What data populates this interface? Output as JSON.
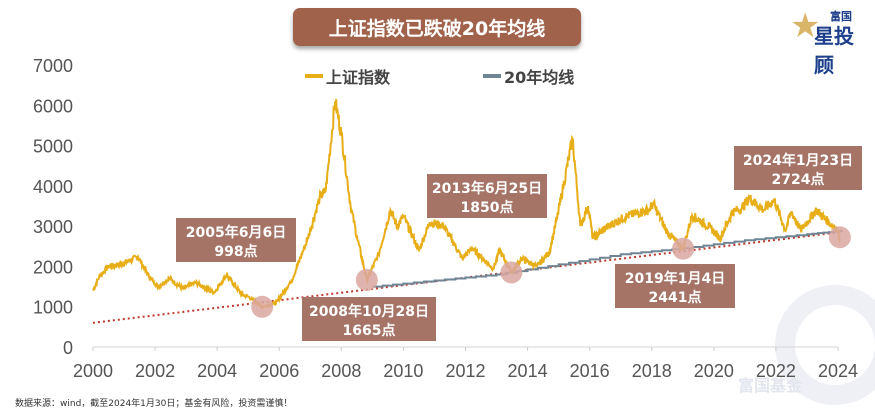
{
  "header": {
    "title": "上证指数已跌破20年均线",
    "logo_top": "富国",
    "logo_bottom": "星投顾"
  },
  "footnote": "数据来源：wind，截至2024年1月30日；基金有风险，投资需谨慎！",
  "watermark": "富国基金",
  "colors": {
    "index": "#e8ae17",
    "ma": "#6f8594",
    "trend": "#c0392b",
    "label_bg": "#a57466",
    "circle": "#d9a7a0"
  },
  "chart_data": {
    "type": "line",
    "title": "上证指数已跌破20年均线",
    "xlim": [
      2000,
      2024
    ],
    "ylim": [
      0,
      7000
    ],
    "yticks": [
      "0",
      "1000",
      "2000",
      "3000",
      "4000",
      "5000",
      "6000",
      "7000"
    ],
    "xticks": [
      "2000",
      "2002",
      "2004",
      "2006",
      "2008",
      "2010",
      "2012",
      "2014",
      "2016",
      "2018",
      "2020",
      "2022",
      "2024"
    ],
    "legend_position": "top-center",
    "series": [
      {
        "name": "上证指数",
        "points": [
          [
            2000.0,
            1400
          ],
          [
            2000.2,
            1750
          ],
          [
            2000.5,
            2000
          ],
          [
            2000.9,
            2050
          ],
          [
            2001.45,
            2240
          ],
          [
            2001.8,
            1750
          ],
          [
            2002.1,
            1500
          ],
          [
            2002.45,
            1700
          ],
          [
            2002.9,
            1450
          ],
          [
            2003.3,
            1600
          ],
          [
            2003.9,
            1350
          ],
          [
            2004.3,
            1780
          ],
          [
            2004.8,
            1300
          ],
          [
            2005.0,
            1250
          ],
          [
            2005.45,
            998
          ],
          [
            2005.9,
            1100
          ],
          [
            2006.4,
            1650
          ],
          [
            2006.9,
            2650
          ],
          [
            2007.3,
            3700
          ],
          [
            2007.5,
            3900
          ],
          [
            2007.8,
            6100
          ],
          [
            2008.0,
            5300
          ],
          [
            2008.3,
            3500
          ],
          [
            2008.5,
            2750
          ],
          [
            2008.82,
            1665
          ],
          [
            2009.2,
            2300
          ],
          [
            2009.58,
            3400
          ],
          [
            2009.8,
            3000
          ],
          [
            2010.0,
            3250
          ],
          [
            2010.5,
            2400
          ],
          [
            2010.85,
            3100
          ],
          [
            2011.3,
            3000
          ],
          [
            2011.9,
            2200
          ],
          [
            2012.2,
            2450
          ],
          [
            2012.9,
            1950
          ],
          [
            2013.1,
            2400
          ],
          [
            2013.48,
            1850
          ],
          [
            2013.8,
            2200
          ],
          [
            2014.3,
            2000
          ],
          [
            2014.7,
            2350
          ],
          [
            2014.95,
            3200
          ],
          [
            2015.45,
            5170
          ],
          [
            2015.7,
            3000
          ],
          [
            2015.95,
            3500
          ],
          [
            2016.1,
            2700
          ],
          [
            2016.6,
            3000
          ],
          [
            2017.2,
            3250
          ],
          [
            2017.9,
            3400
          ],
          [
            2018.05,
            3560
          ],
          [
            2018.5,
            2850
          ],
          [
            2019.01,
            2441
          ],
          [
            2019.3,
            3270
          ],
          [
            2019.9,
            2950
          ],
          [
            2020.2,
            2700
          ],
          [
            2020.6,
            3350
          ],
          [
            2020.9,
            3450
          ],
          [
            2021.15,
            3700
          ],
          [
            2021.6,
            3400
          ],
          [
            2021.95,
            3650
          ],
          [
            2022.3,
            2900
          ],
          [
            2022.5,
            3350
          ],
          [
            2022.8,
            2900
          ],
          [
            2023.3,
            3400
          ],
          [
            2023.7,
            3100
          ],
          [
            2023.95,
            2950
          ],
          [
            2024.06,
            2724
          ]
        ]
      },
      {
        "name": "20年均线",
        "points": [
          [
            2009.0,
            1500
          ],
          [
            2011.0,
            1650
          ],
          [
            2013.0,
            1800
          ],
          [
            2015.0,
            2050
          ],
          [
            2017.0,
            2300
          ],
          [
            2019.0,
            2450
          ],
          [
            2021.0,
            2650
          ],
          [
            2023.0,
            2800
          ],
          [
            2024.06,
            2880
          ]
        ]
      },
      {
        "name": "trend",
        "points": [
          [
            2000.0,
            600
          ],
          [
            2024.06,
            2850
          ]
        ]
      }
    ],
    "annotations": [
      {
        "date": "2005年6月6日",
        "value": "998点",
        "x": 2005.45,
        "y": 998,
        "box": "above-left"
      },
      {
        "date": "2008年10月28日",
        "value": "1665点",
        "x": 2008.82,
        "y": 1665,
        "box": "below"
      },
      {
        "date": "2013年6月25日",
        "value": "1850点",
        "x": 2013.48,
        "y": 1850,
        "box": "above"
      },
      {
        "date": "2019年1月4日",
        "value": "2441点",
        "x": 2019.01,
        "y": 2441,
        "box": "below"
      },
      {
        "date": "2024年1月23日",
        "value": "2724点",
        "x": 2024.06,
        "y": 2724,
        "box": "above-left"
      }
    ]
  }
}
